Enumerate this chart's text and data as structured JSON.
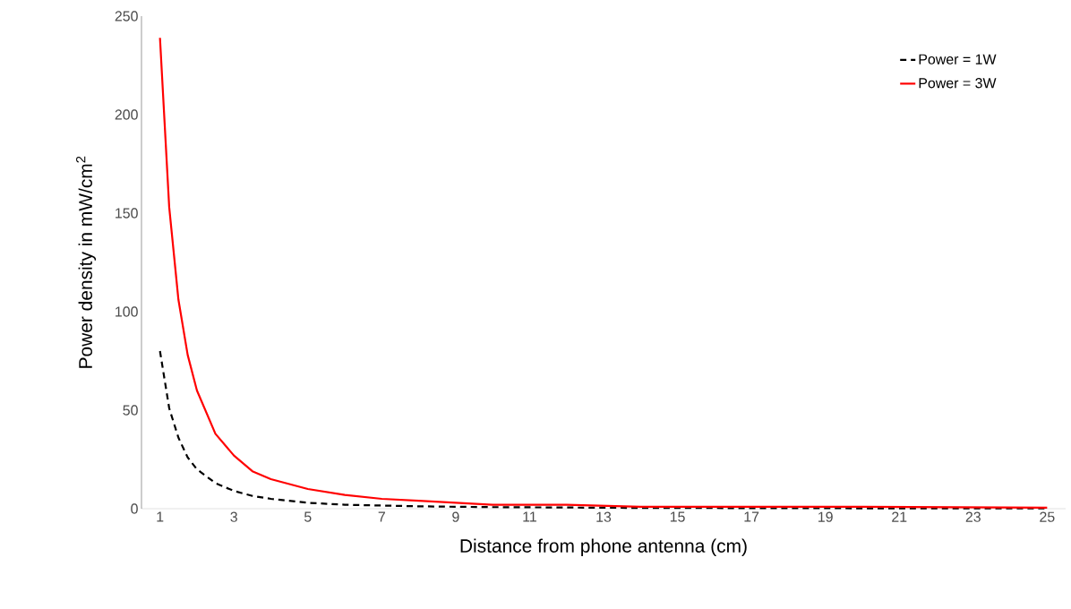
{
  "chart_data": {
    "type": "line",
    "xlabel": "Distance from phone antenna (cm)",
    "ylabel": "Power density in mW/cm$^{2}$",
    "x": [
      1,
      1.25,
      1.5,
      1.75,
      2,
      2.5,
      3,
      3.5,
      4,
      5,
      6,
      7,
      8,
      9,
      10,
      12,
      14,
      17,
      20,
      25
    ],
    "series": [
      {
        "name": "Power = 1W",
        "color": "#000000",
        "line_style": "dashed",
        "values": [
          80,
          51,
          36,
          26,
          20,
          13,
          9,
          6.5,
          5,
          3,
          2,
          1.6,
          1.2,
          1,
          0.8,
          0.6,
          0.4,
          0.3,
          0.2,
          0.1
        ]
      },
      {
        "name": "Power = 3W",
        "color": "#ff0000",
        "line_style": "solid",
        "values": [
          239,
          153,
          106,
          78,
          60,
          38,
          27,
          19,
          15,
          10,
          7,
          5,
          4,
          3,
          2,
          2,
          1,
          1,
          1,
          0.5
        ]
      }
    ],
    "xlim": [
      0.5,
      25.5
    ],
    "xticks": [
      1,
      3,
      5,
      7,
      9,
      11,
      13,
      15,
      17,
      19,
      21,
      23,
      25
    ],
    "ylim": [
      0,
      250
    ],
    "yticks": [
      0,
      50,
      100,
      150,
      200,
      250
    ],
    "grid": false,
    "legend": "top right",
    "marker": "none"
  }
}
